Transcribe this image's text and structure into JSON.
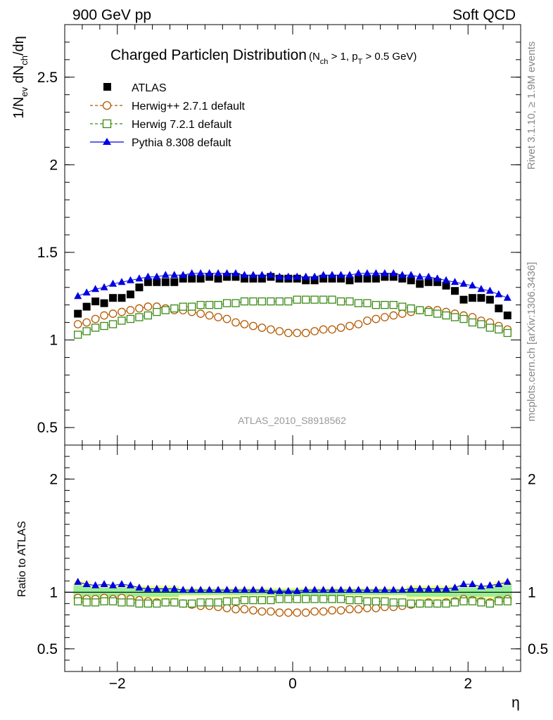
{
  "header": {
    "left": "900 GeV pp",
    "right": "Soft QCD"
  },
  "side_labels": {
    "rivet": "Rivet 3.1.10, ≥ 1.9M events",
    "mcplots": "mcplots.cern.ch [arXiv:1306.3436]"
  },
  "chart_data": [
    {
      "type": "scatter",
      "title": "Charged Particleη Distribution",
      "title_cuts": {
        "pre1": "(N",
        "sub1": "ch",
        "mid1": " > 1, p",
        "sub2": "T",
        "post": " > 0.5 GeV)"
      },
      "ylabel": {
        "p1": "1/N",
        "s1": "ev",
        "p2": " dN",
        "s2": "ch",
        "p3": "/dη"
      },
      "analysis_tag": "ATLAS_2010_S8918562",
      "xlim": [
        -2.6,
        2.6
      ],
      "ylim": [
        0.4,
        2.8
      ],
      "yticks": [
        0.5,
        1,
        1.5,
        2,
        2.5
      ],
      "ytick_labels": [
        "0.5",
        "1",
        "1.5",
        "2",
        "2.5"
      ],
      "x": [
        -2.45,
        -2.35,
        -2.25,
        -2.15,
        -2.05,
        -1.95,
        -1.85,
        -1.75,
        -1.65,
        -1.55,
        -1.45,
        -1.35,
        -1.25,
        -1.15,
        -1.05,
        -0.95,
        -0.85,
        -0.75,
        -0.65,
        -0.55,
        -0.45,
        -0.35,
        -0.25,
        -0.15,
        -0.05,
        0.05,
        0.15,
        0.25,
        0.35,
        0.45,
        0.55,
        0.65,
        0.75,
        0.85,
        0.95,
        1.05,
        1.15,
        1.25,
        1.35,
        1.45,
        1.55,
        1.65,
        1.75,
        1.85,
        1.95,
        2.05,
        2.15,
        2.25,
        2.35,
        2.45
      ],
      "series": [
        {
          "name": "ATLAS",
          "color": "#000000",
          "marker": "square-filled",
          "values": [
            1.15,
            1.19,
            1.22,
            1.21,
            1.24,
            1.24,
            1.26,
            1.3,
            1.33,
            1.33,
            1.33,
            1.33,
            1.35,
            1.35,
            1.35,
            1.36,
            1.35,
            1.36,
            1.36,
            1.35,
            1.35,
            1.35,
            1.36,
            1.35,
            1.35,
            1.35,
            1.34,
            1.34,
            1.35,
            1.35,
            1.35,
            1.34,
            1.35,
            1.35,
            1.35,
            1.36,
            1.36,
            1.35,
            1.34,
            1.32,
            1.33,
            1.33,
            1.31,
            1.28,
            1.23,
            1.24,
            1.24,
            1.23,
            1.18,
            1.14
          ]
        },
        {
          "name": "Herwig++ 2.7.1 default",
          "color": "#b35900",
          "marker": "circle-open",
          "values": [
            1.09,
            1.1,
            1.12,
            1.14,
            1.15,
            1.16,
            1.17,
            1.18,
            1.19,
            1.19,
            1.18,
            1.17,
            1.17,
            1.16,
            1.15,
            1.14,
            1.13,
            1.12,
            1.1,
            1.09,
            1.08,
            1.07,
            1.06,
            1.05,
            1.04,
            1.04,
            1.04,
            1.05,
            1.06,
            1.06,
            1.07,
            1.08,
            1.09,
            1.11,
            1.12,
            1.13,
            1.14,
            1.15,
            1.16,
            1.17,
            1.17,
            1.17,
            1.16,
            1.15,
            1.14,
            1.13,
            1.11,
            1.1,
            1.08,
            1.06
          ]
        },
        {
          "name": "Herwig 7.2.1 default",
          "color": "#3a8a14",
          "marker": "square-open",
          "values": [
            1.03,
            1.05,
            1.07,
            1.08,
            1.09,
            1.11,
            1.12,
            1.13,
            1.14,
            1.16,
            1.17,
            1.18,
            1.19,
            1.19,
            1.2,
            1.2,
            1.2,
            1.21,
            1.21,
            1.22,
            1.22,
            1.22,
            1.22,
            1.22,
            1.22,
            1.23,
            1.23,
            1.23,
            1.23,
            1.23,
            1.22,
            1.22,
            1.21,
            1.21,
            1.2,
            1.2,
            1.2,
            1.19,
            1.18,
            1.17,
            1.16,
            1.15,
            1.14,
            1.13,
            1.12,
            1.1,
            1.09,
            1.07,
            1.06,
            1.04
          ]
        },
        {
          "name": "Pythia 8.308 default",
          "color": "#0000e0",
          "marker": "triangle-filled",
          "values": [
            1.25,
            1.27,
            1.29,
            1.3,
            1.32,
            1.33,
            1.34,
            1.35,
            1.36,
            1.36,
            1.37,
            1.37,
            1.37,
            1.38,
            1.38,
            1.38,
            1.38,
            1.38,
            1.38,
            1.37,
            1.37,
            1.37,
            1.37,
            1.36,
            1.36,
            1.36,
            1.36,
            1.36,
            1.37,
            1.37,
            1.37,
            1.37,
            1.38,
            1.38,
            1.38,
            1.38,
            1.38,
            1.37,
            1.37,
            1.36,
            1.36,
            1.35,
            1.34,
            1.33,
            1.32,
            1.31,
            1.29,
            1.28,
            1.26,
            1.24
          ]
        }
      ],
      "legend_position": "top-left",
      "grid": false
    },
    {
      "type": "scatter",
      "ylabel": "Ratio to ATLAS",
      "xlabel": "η",
      "xlim": [
        -2.6,
        2.6
      ],
      "ylim": [
        0.3,
        2.3
      ],
      "yticks": [
        0.5,
        1,
        2
      ],
      "ytick_labels": [
        "0.5",
        "1",
        "2"
      ],
      "xticks": [
        -2,
        0,
        2
      ],
      "xtick_labels": [
        "−2",
        "0",
        "2"
      ],
      "reference": 1,
      "uncertainty_band": {
        "x_edges": [
          -2.5,
          -2.3,
          -1.9,
          -1.3,
          1.3,
          1.9,
          2.3,
          2.5
        ],
        "yellow_half_width": [
          0.1,
          0.06,
          0.06,
          0.04,
          0.06,
          0.06,
          0.1
        ],
        "green_half_width": [
          0.06,
          0.04,
          0.04,
          0.025,
          0.04,
          0.04,
          0.06
        ]
      },
      "x": [
        -2.45,
        -2.35,
        -2.25,
        -2.15,
        -2.05,
        -1.95,
        -1.85,
        -1.75,
        -1.65,
        -1.55,
        -1.45,
        -1.35,
        -1.25,
        -1.15,
        -1.05,
        -0.95,
        -0.85,
        -0.75,
        -0.65,
        -0.55,
        -0.45,
        -0.35,
        -0.25,
        -0.15,
        -0.05,
        0.05,
        0.15,
        0.25,
        0.35,
        0.45,
        0.55,
        0.65,
        0.75,
        0.85,
        0.95,
        1.05,
        1.15,
        1.25,
        1.35,
        1.45,
        1.55,
        1.65,
        1.75,
        1.85,
        1.95,
        2.05,
        2.15,
        2.25,
        2.35,
        2.45
      ],
      "series": [
        {
          "name": "Herwig++ 2.7.1 default",
          "color": "#b35900",
          "marker": "circle-open",
          "values": [
            0.95,
            0.94,
            0.94,
            0.95,
            0.94,
            0.95,
            0.94,
            0.93,
            0.92,
            0.91,
            0.91,
            0.91,
            0.9,
            0.89,
            0.88,
            0.88,
            0.87,
            0.86,
            0.85,
            0.85,
            0.84,
            0.83,
            0.83,
            0.82,
            0.82,
            0.82,
            0.82,
            0.83,
            0.83,
            0.84,
            0.84,
            0.85,
            0.85,
            0.86,
            0.86,
            0.87,
            0.87,
            0.88,
            0.89,
            0.9,
            0.91,
            0.9,
            0.91,
            0.92,
            0.94,
            0.93,
            0.92,
            0.91,
            0.93,
            0.94
          ]
        },
        {
          "name": "Herwig 7.2.1 default",
          "color": "#3a8a14",
          "marker": "square-open",
          "values": [
            0.92,
            0.91,
            0.91,
            0.92,
            0.92,
            0.91,
            0.91,
            0.9,
            0.9,
            0.9,
            0.91,
            0.91,
            0.9,
            0.9,
            0.91,
            0.91,
            0.91,
            0.92,
            0.92,
            0.93,
            0.93,
            0.93,
            0.93,
            0.94,
            0.94,
            0.94,
            0.94,
            0.94,
            0.94,
            0.94,
            0.94,
            0.93,
            0.93,
            0.92,
            0.92,
            0.92,
            0.91,
            0.91,
            0.9,
            0.9,
            0.9,
            0.9,
            0.9,
            0.91,
            0.92,
            0.92,
            0.91,
            0.9,
            0.92,
            0.92
          ]
        },
        {
          "name": "Pythia 8.308 default",
          "color": "#0000e0",
          "marker": "triangle-filled",
          "values": [
            1.09,
            1.07,
            1.06,
            1.07,
            1.06,
            1.07,
            1.06,
            1.04,
            1.03,
            1.03,
            1.03,
            1.03,
            1.02,
            1.02,
            1.02,
            1.02,
            1.02,
            1.02,
            1.02,
            1.02,
            1.02,
            1.02,
            1.01,
            1.01,
            1.01,
            1.01,
            1.02,
            1.02,
            1.02,
            1.02,
            1.02,
            1.02,
            1.02,
            1.02,
            1.02,
            1.02,
            1.02,
            1.02,
            1.03,
            1.03,
            1.03,
            1.03,
            1.03,
            1.04,
            1.07,
            1.07,
            1.05,
            1.06,
            1.07,
            1.09
          ]
        }
      ]
    }
  ]
}
